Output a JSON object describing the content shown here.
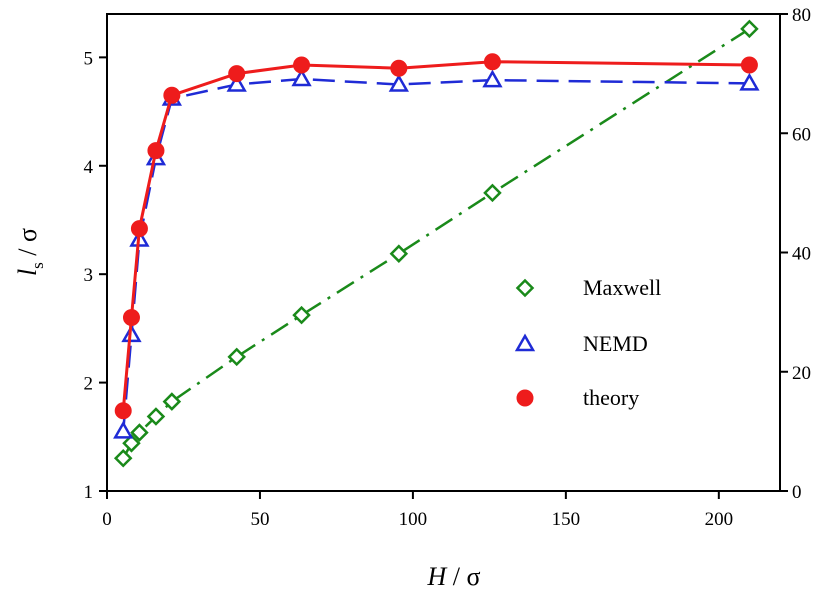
{
  "chart_data": {
    "type": "line",
    "title": "",
    "xlabel": {
      "italic": "H",
      "rest": " / σ"
    },
    "ylabel": {
      "italic": "l",
      "sub": "s",
      "rest": " / σ"
    },
    "xlim": [
      0,
      220
    ],
    "ylim": [
      1,
      5.4
    ],
    "y2lim": [
      0,
      80
    ],
    "xticks": [
      0,
      50,
      100,
      150,
      200
    ],
    "yticks": [
      1,
      2,
      3,
      4,
      5
    ],
    "y2ticks": [
      0,
      20,
      40,
      60,
      80
    ],
    "legend_position": "lower-right",
    "series": [
      {
        "name": "Maxwell",
        "axis": "right",
        "color": "#1a8a1a",
        "marker": "diamond-open",
        "line": "dash-dot",
        "x": [
          5.3,
          8,
          10.6,
          16,
          21.2,
          42.4,
          63.6,
          95.4,
          126,
          210
        ],
        "y": [
          5.5,
          8.0,
          9.8,
          12.5,
          15.0,
          22.5,
          29.5,
          39.8,
          50.0,
          77.5
        ]
      },
      {
        "name": "NEMD",
        "axis": "left",
        "color": "#1f2bd6",
        "marker": "triangle-open",
        "line": "dashed",
        "x": [
          5.3,
          8,
          10.6,
          16,
          21.2,
          42.4,
          63.6,
          95.4,
          126,
          210
        ],
        "y": [
          1.55,
          2.44,
          3.32,
          4.07,
          4.62,
          4.75,
          4.8,
          4.75,
          4.79,
          4.76
        ]
      },
      {
        "name": "theory",
        "axis": "left",
        "color": "#ee1c1c",
        "marker": "circle-filled",
        "line": "solid",
        "x": [
          5.3,
          8,
          10.6,
          16,
          21.2,
          42.4,
          63.6,
          95.4,
          126,
          210
        ],
        "y": [
          1.74,
          2.6,
          3.42,
          4.14,
          4.65,
          4.85,
          4.93,
          4.9,
          4.96,
          4.93
        ]
      }
    ]
  }
}
